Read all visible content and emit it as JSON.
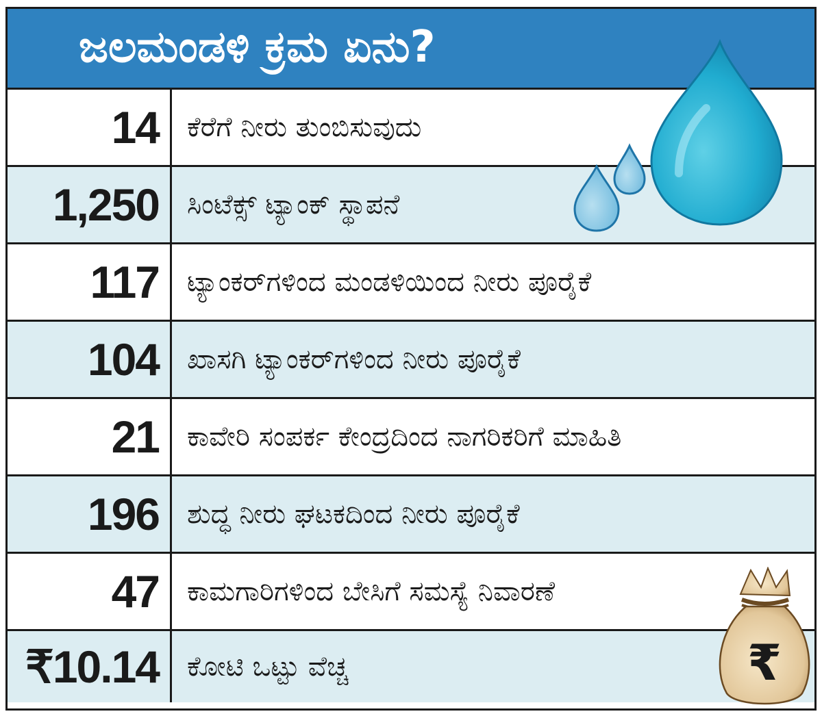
{
  "header": {
    "title": "ಜಲಮಂಡಳಿ ಕ್ರಮ ಏನು?",
    "background_color": "#2f82c0"
  },
  "rows": [
    {
      "value": "14",
      "label": "ಕೆರೆಗೆ ನೀರು ತುಂಬಿಸುವುದು"
    },
    {
      "value": "1,250",
      "label": "ಸಿಂಟೆಕ್ಸ್ ಟ್ಯಾಂಕ್ ಸ್ಥಾಪನೆ"
    },
    {
      "value": "117",
      "label": "ಟ್ಯಾಂಕರ್‌ಗಳಿಂದ ಮಂಡಳಿಯಿಂದ ನೀರು ಪೂರೈಕೆ"
    },
    {
      "value": "104",
      "label": "ಖಾಸಗಿ ಟ್ಯಾಂಕರ್‌ಗಳಿಂದ ನೀರು ಪೂರೈಕೆ"
    },
    {
      "value": "21",
      "label": "ಕಾವೇರಿ ಸಂಪರ್ಕ ಕೇಂದ್ರದಿಂದ ನಾಗರಿಕರಿಗೆ ಮಾಹಿತಿ"
    },
    {
      "value": "196",
      "label": "ಶುದ್ಧ ನೀರು ಘಟಕದಿಂದ ನೀರು ಪೂರೈಕೆ"
    },
    {
      "value": "47",
      "label": "ಕಾಮಗಾರಿಗಳಿಂದ ಬೇಸಿಗೆ ಸಮಸ್ಯೆ ನಿವಾರಣೆ"
    },
    {
      "value": "₹10.14",
      "label": "ಕೋಟಿ ಒಟ್ಟು ವೆಚ್ಚ"
    }
  ],
  "colors": {
    "alt_row": "#dcedf2",
    "border": "#1a1a1a",
    "drop": "#27b2d1"
  },
  "icons": {
    "drops": "water-drops-icon",
    "bag": "rupee-money-bag-icon",
    "bag_symbol": "₹"
  }
}
